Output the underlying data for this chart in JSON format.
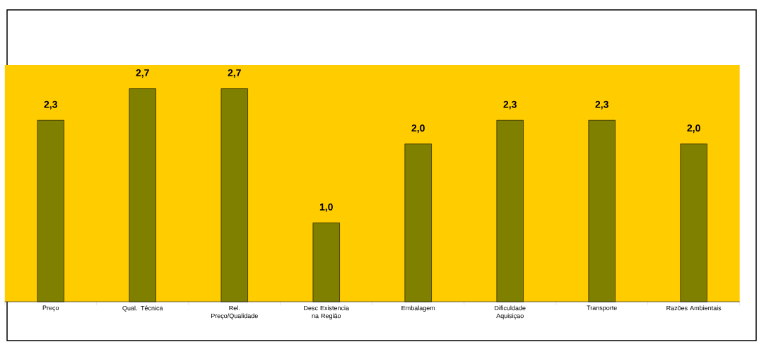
{
  "chart_data": {
    "type": "bar",
    "categories": [
      "Preço",
      "Qual. Técnica",
      "Rel. Preço/Qualidade",
      "Desc Existencia na Região",
      "Embalagem",
      "Dificuldade Aquisiçao",
      "Transporte",
      "Razões Ambientais"
    ],
    "values": [
      2.3,
      2.7,
      2.7,
      1.0,
      2.0,
      2.3,
      2.3,
      2.0
    ],
    "value_labels": [
      "2,3",
      "2,7",
      "2,7",
      "1,0",
      "2,0",
      "2,3",
      "2,3",
      "2,0"
    ],
    "color": "#808000",
    "ylim": [
      0,
      3
    ]
  }
}
